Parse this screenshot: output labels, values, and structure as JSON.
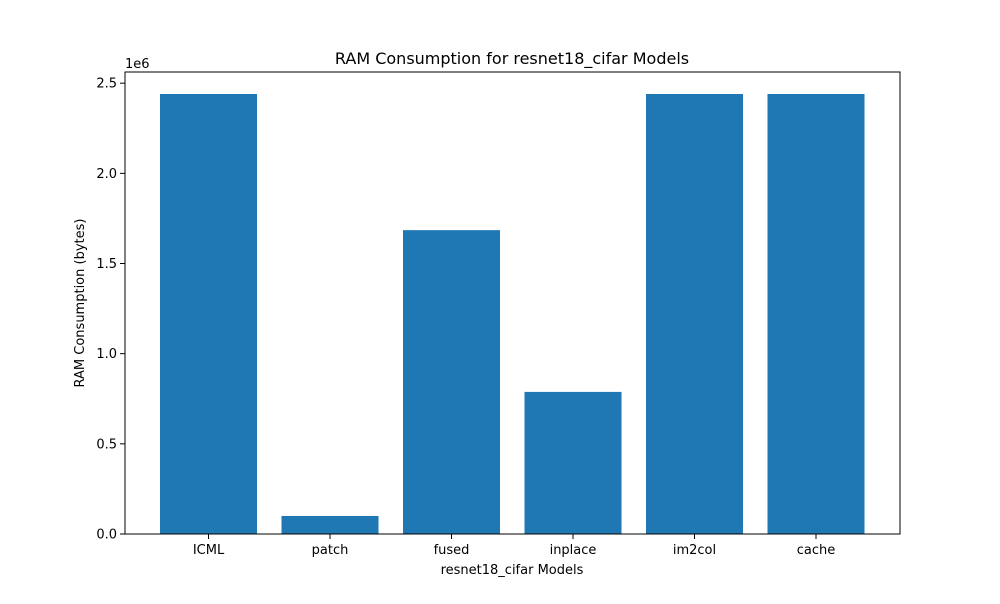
{
  "chart_data": {
    "type": "bar",
    "title": "RAM Consumption for resnet18_cifar Models",
    "xlabel": "resnet18_cifar Models",
    "ylabel": "RAM Consumption (bytes)",
    "offset_text": "1e6",
    "categories": [
      "ICML",
      "patch",
      "fused",
      "inplace",
      "im2col",
      "cache"
    ],
    "values": [
      2440000,
      100000,
      1685000,
      788000,
      2440000,
      2440000
    ],
    "ylim": [
      0,
      2562000
    ],
    "yticks": [
      0,
      500000,
      1000000,
      1500000,
      2000000,
      2500000
    ],
    "ytick_labels": [
      "0.0",
      "0.5",
      "1.0",
      "1.5",
      "2.0",
      "2.5"
    ],
    "grid": false,
    "legend": "none",
    "bar_color": "#1f77b4"
  }
}
